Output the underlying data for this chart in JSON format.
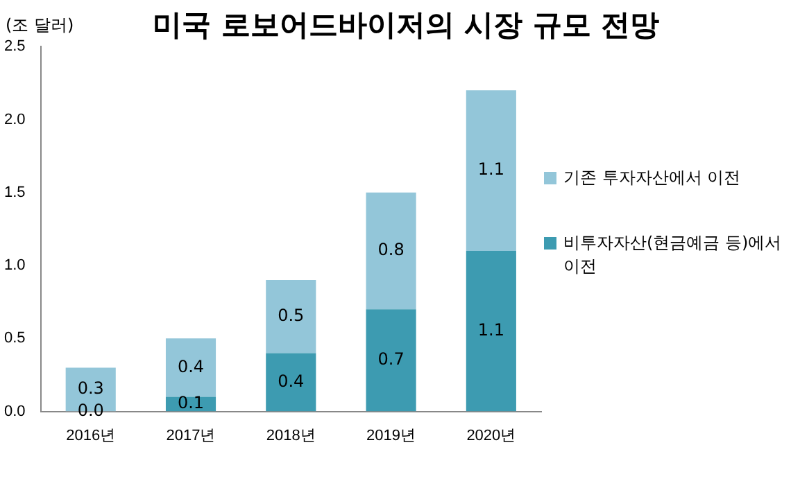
{
  "chart_data": {
    "type": "bar",
    "title": "미국 로보어드바이저의 시장 규모 전망",
    "ylabel": "(조 달러)",
    "categories": [
      "2016년",
      "2017년",
      "2018년",
      "2019년",
      "2020년"
    ],
    "series": [
      {
        "name": "비투자자산(현금예금 등)에서 이전",
        "color": "#3d9bb1",
        "values": [
          0.0,
          0.1,
          0.4,
          0.7,
          1.1
        ],
        "value_labels": [
          "0.0",
          "0.1",
          "0.4",
          "0.7",
          "1.1"
        ]
      },
      {
        "name": "기존 투자자산에서 이전",
        "color": "#93c6d9",
        "values": [
          0.3,
          0.4,
          0.5,
          0.8,
          1.1
        ],
        "value_labels": [
          "0.3",
          "0.4",
          "0.5",
          "0.8",
          "1.1"
        ]
      }
    ],
    "stacked": true,
    "ylim": [
      0,
      2.5
    ],
    "yticks": [
      {
        "value": 0,
        "label": "0.0"
      },
      {
        "value": 0.5,
        "label": "0.5"
      },
      {
        "value": 1,
        "label": "1.0"
      },
      {
        "value": 1.5,
        "label": "1.5"
      },
      {
        "value": 2,
        "label": "2.0"
      },
      {
        "value": 2.5,
        "label": "2.5"
      }
    ],
    "grid": false,
    "legend": "right"
  }
}
